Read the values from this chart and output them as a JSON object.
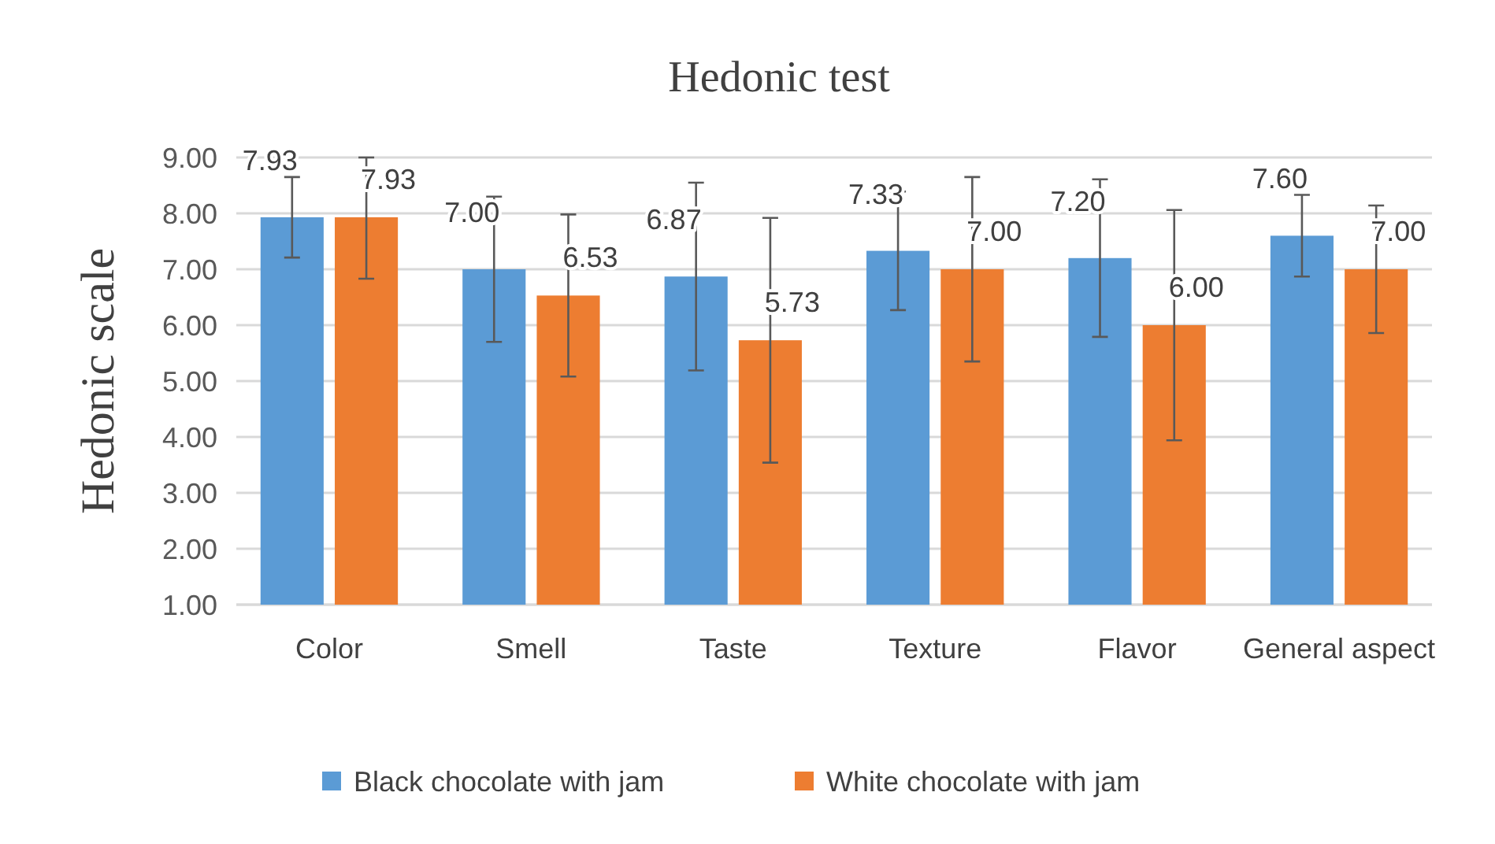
{
  "chart_data": {
    "type": "bar",
    "title": "Hedonic test",
    "ylabel": "Hedonic scale",
    "categories": [
      "Color",
      "Smell",
      "Taste",
      "Texture",
      "Flavor",
      "General aspect"
    ],
    "series": [
      {
        "name": "Black chocolate with jam",
        "color": "#5b9bd5",
        "values": [
          7.93,
          7.0,
          6.87,
          7.33,
          7.2,
          7.6
        ],
        "value_labels": [
          "7.93",
          "7.00",
          "6.87",
          "7.33",
          "7.20",
          "7.60"
        ],
        "errors": [
          0.72,
          1.3,
          1.68,
          1.06,
          1.41,
          0.73
        ]
      },
      {
        "name": "White chocolate with jam",
        "color": "#ed7d31",
        "values": [
          7.93,
          6.53,
          5.73,
          7.0,
          6.0,
          7.0
        ],
        "value_labels": [
          "7.93",
          "6.53",
          "5.73",
          "7.00",
          "6.00",
          "7.00"
        ],
        "errors": [
          [
            6.83,
            9.0
          ],
          1.45,
          2.19,
          1.65,
          2.06,
          1.14
        ]
      }
    ],
    "ylim": [
      1,
      9
    ],
    "yticks": [
      {
        "value": 1,
        "label": "1.00"
      },
      {
        "value": 2,
        "label": "2.00"
      },
      {
        "value": 3,
        "label": "3.00"
      },
      {
        "value": 4,
        "label": "4.00"
      },
      {
        "value": 5,
        "label": "5.00"
      },
      {
        "value": 6,
        "label": "6.00"
      },
      {
        "value": 7,
        "label": "7.00"
      },
      {
        "value": 8,
        "label": "8.00"
      },
      {
        "value": 9,
        "label": "9.00"
      }
    ],
    "grid": "y",
    "legend": "bottom"
  }
}
